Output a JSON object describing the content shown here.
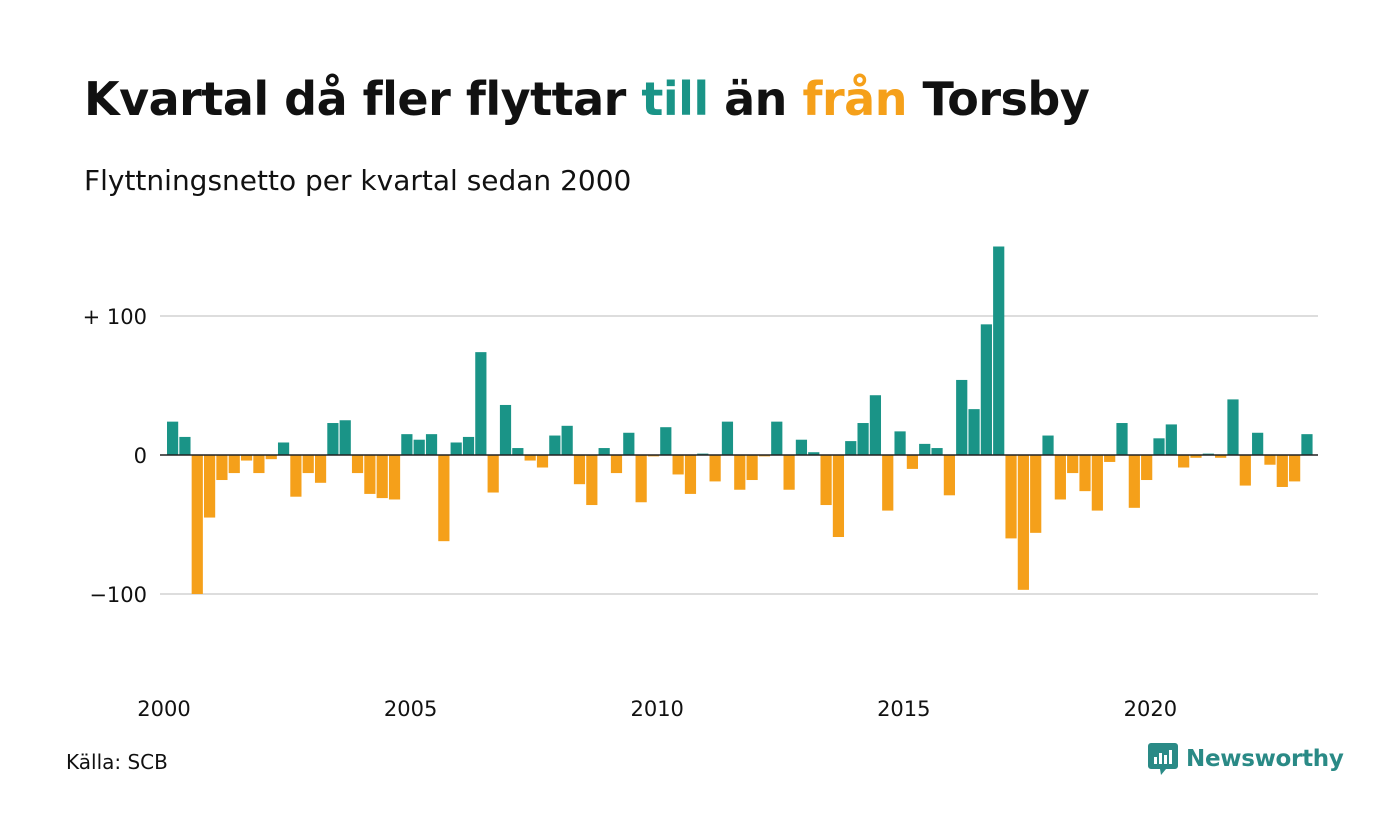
{
  "title": {
    "part1": "Kvartal då fler flyttar ",
    "part2": "till",
    "part3": " än ",
    "part4": "från",
    "part5": " Torsby"
  },
  "subtitle": "Flyttningsnetto per kvartal sedan 2000",
  "source": "Källa: SCB",
  "brand": "Newsworthy",
  "colors": {
    "positive": "#1a9487",
    "negative": "#f5a01a",
    "grid": "#dddddd"
  },
  "chart_data": {
    "type": "bar",
    "title": "Kvartal då fler flyttar till än från Torsby",
    "subtitle": "Flyttningsnetto per kvartal sedan 2000",
    "x_start": "2000-Q1",
    "x_ticks": [
      "2000",
      "2005",
      "2010",
      "2015",
      "2020"
    ],
    "y_ticks": [
      {
        "value": 100,
        "label": "+ 100"
      },
      {
        "value": 0,
        "label": "0"
      },
      {
        "value": -100,
        "label": "−100"
      }
    ],
    "ylim": [
      -150,
      150
    ],
    "grid": true,
    "values": [
      24,
      13,
      -100,
      -45,
      -18,
      -13,
      -4,
      -13,
      -3,
      9,
      -30,
      -13,
      -20,
      23,
      25,
      -13,
      -28,
      -31,
      -32,
      15,
      11,
      15,
      -62,
      9,
      13,
      74,
      -27,
      36,
      5,
      -4,
      -9,
      14,
      21,
      -21,
      -36,
      5,
      -13,
      16,
      -34,
      -1,
      20,
      -14,
      -28,
      1,
      -19,
      24,
      -25,
      -18,
      -1,
      24,
      -25,
      11,
      2,
      -36,
      -59,
      10,
      23,
      43,
      -40,
      17,
      -10,
      8,
      5,
      -29,
      54,
      33,
      94,
      150,
      -60,
      -97,
      -56,
      14,
      -32,
      -13,
      -26,
      -40,
      -5,
      23,
      -38,
      -18,
      12,
      22,
      -9,
      -2,
      1,
      -2,
      40,
      -22,
      16,
      -7,
      -23,
      -19,
      15
    ]
  }
}
